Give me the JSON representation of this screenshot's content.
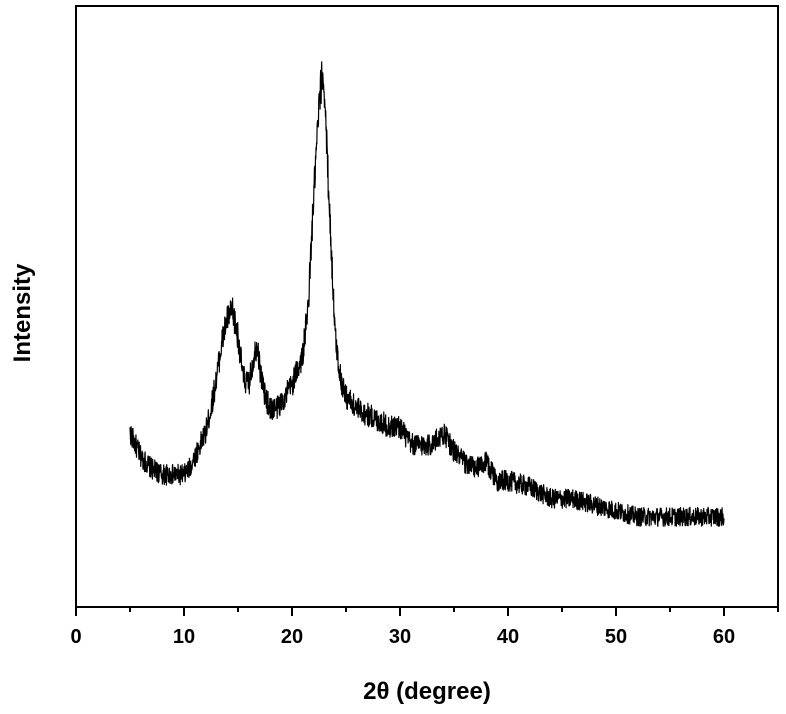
{
  "chart_data": {
    "type": "line",
    "title": "",
    "xlabel": "2θ (degree)",
    "ylabel": "Intensity",
    "xlim": [
      0,
      65
    ],
    "ylim": [
      0,
      1
    ],
    "x_ticks": [
      0,
      10,
      20,
      30,
      40,
      50,
      60
    ],
    "x_tick_labels": [
      "0",
      "10",
      "20",
      "30",
      "40",
      "50",
      "60"
    ],
    "y_ticks_shown": false,
    "grid": false,
    "legend": "none",
    "line_color": "#000000",
    "series": [
      {
        "x": [
          5,
          6,
          7,
          8,
          9,
          10,
          10.5,
          11,
          12,
          12.5,
          13,
          13.5,
          14,
          14.5,
          15,
          15.5,
          16,
          16.5,
          16.8,
          17,
          17.5,
          18,
          18.5,
          19,
          20,
          21,
          21.5,
          22,
          22.5,
          22.8,
          23,
          23.5,
          24,
          24.5,
          25,
          26,
          27,
          28,
          29,
          30,
          31,
          32,
          33,
          34,
          35,
          36,
          37,
          38,
          39,
          40,
          42,
          44,
          46,
          48,
          50,
          52,
          54,
          56,
          58,
          60
        ],
        "y": [
          0.29,
          0.25,
          0.23,
          0.22,
          0.22,
          0.22,
          0.23,
          0.25,
          0.29,
          0.33,
          0.38,
          0.44,
          0.48,
          0.49,
          0.45,
          0.38,
          0.37,
          0.42,
          0.44,
          0.4,
          0.35,
          0.33,
          0.33,
          0.34,
          0.37,
          0.42,
          0.5,
          0.68,
          0.83,
          0.89,
          0.86,
          0.65,
          0.45,
          0.38,
          0.35,
          0.33,
          0.32,
          0.31,
          0.3,
          0.3,
          0.27,
          0.27,
          0.27,
          0.29,
          0.26,
          0.24,
          0.23,
          0.24,
          0.21,
          0.21,
          0.2,
          0.18,
          0.18,
          0.17,
          0.16,
          0.15,
          0.15,
          0.15,
          0.15,
          0.15
        ]
      }
    ]
  }
}
